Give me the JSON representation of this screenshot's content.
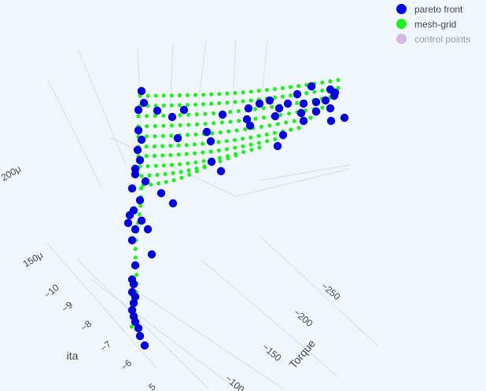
{
  "chart_data": {
    "type": "scatter3d",
    "axes": {
      "x": {
        "title": "Torque",
        "ticks": [
          "−250",
          "−200",
          "−150",
          "−100"
        ]
      },
      "y": {
        "title": "ita",
        "ticks": [
          "−10",
          "−9",
          "−8",
          "−7",
          "−6",
          "5"
        ]
      },
      "z": {
        "title": "",
        "ticks": [
          "200μ",
          "150μ"
        ]
      }
    },
    "legend": {
      "placement": "top-right",
      "items": [
        {
          "name": "pareto front",
          "color": "#0000dd"
        },
        {
          "name": "mesh-grid",
          "color": "#22ee22"
        },
        {
          "name": "control points",
          "color": "#b57cc4",
          "hidden": true
        }
      ]
    },
    "grid": true
  }
}
